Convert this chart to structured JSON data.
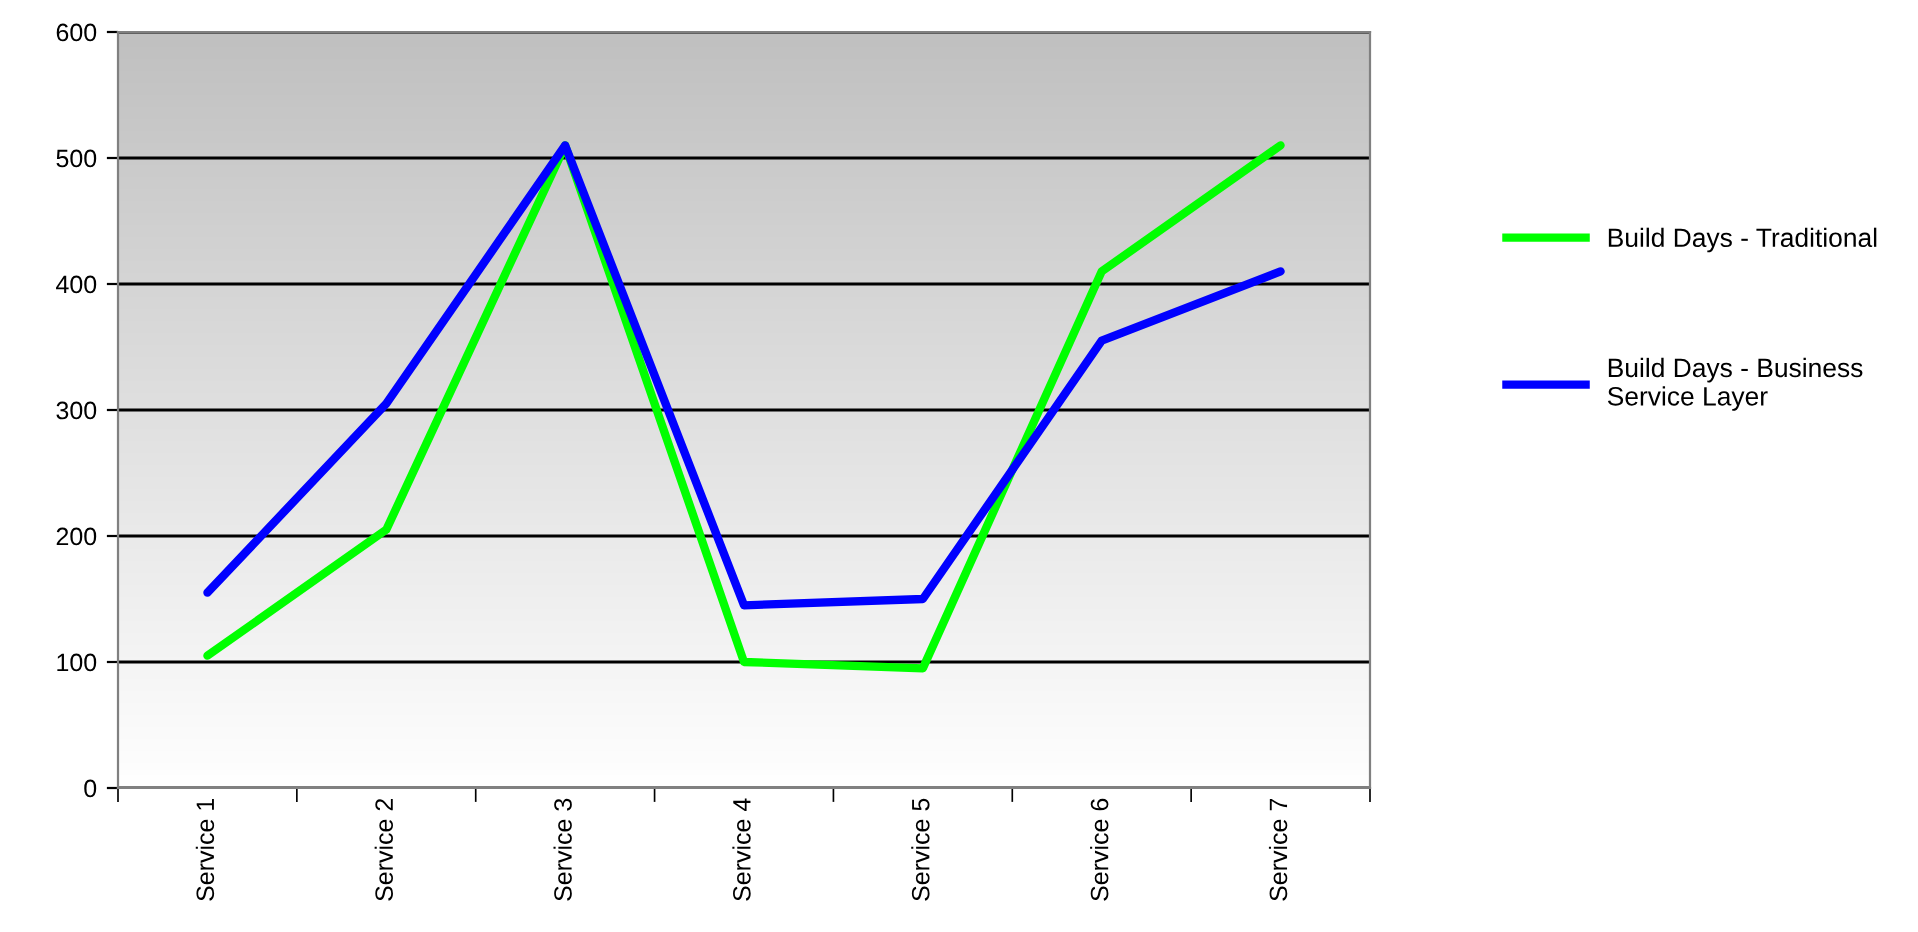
{
  "chart_data": {
    "type": "line",
    "categories": [
      "Service 1",
      "Service 2",
      "Service 3",
      "Service 4",
      "Service 5",
      "Service 6",
      "Service 7"
    ],
    "series": [
      {
        "name": "Build Days - Traditional",
        "color": "#00ff00",
        "values": [
          105,
          205,
          510,
          100,
          95,
          410,
          510
        ]
      },
      {
        "name": "Build Days - Business Service Layer",
        "color": "#0000ff",
        "values": [
          155,
          305,
          510,
          145,
          150,
          355,
          410
        ]
      }
    ],
    "ylim": [
      0,
      600
    ],
    "yticks": [
      0,
      100,
      200,
      300,
      400,
      500,
      600
    ],
    "grid": "y",
    "legend": "right",
    "marker": "none",
    "line_style": "solid"
  }
}
